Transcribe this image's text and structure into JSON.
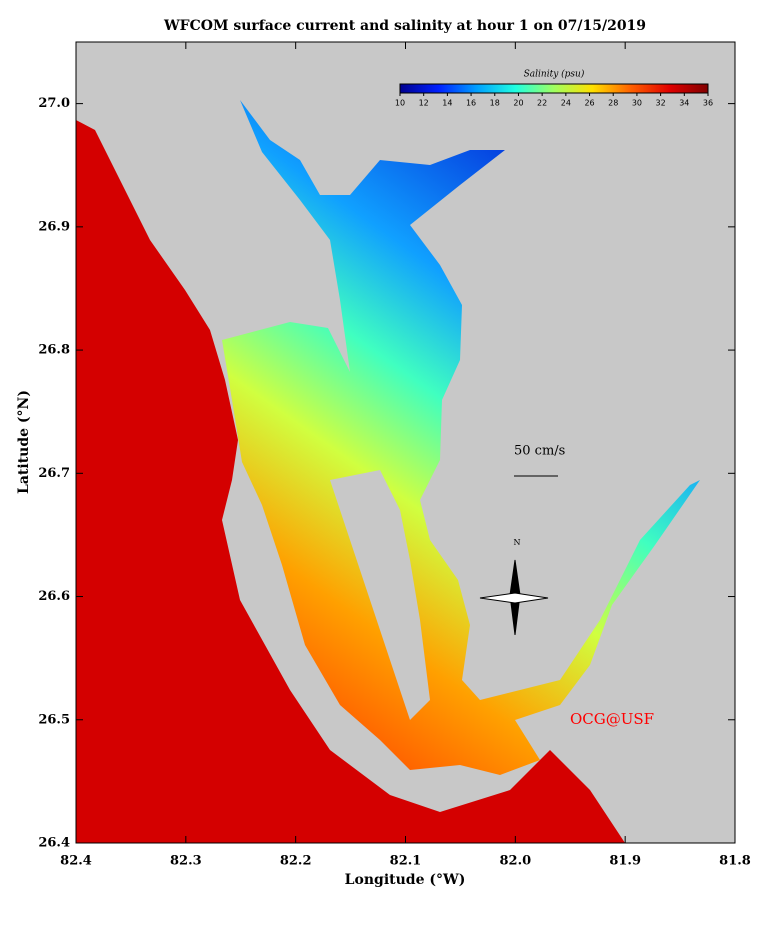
{
  "chart_data": {
    "type": "map",
    "title": "WFCOM surface current and salinity at hour 1 on 07/15/2019",
    "xlabel": "Longitude (°W)",
    "ylabel": "Latitude (°N)",
    "xlim": [
      82.4,
      81.8
    ],
    "ylim": [
      26.4,
      27.05
    ],
    "xticks": [
      82.4,
      82.3,
      82.2,
      82.1,
      {
        "value": 82,
        "label": "82.0"
      },
      81.9,
      81.8
    ],
    "yticks": [
      26.4,
      26.5,
      26.6,
      26.7,
      26.8,
      26.9,
      {
        "value": 27,
        "label": "27.0"
      }
    ],
    "colorbar": {
      "label": "Salinity (psu)",
      "lim": [
        10,
        36
      ],
      "ticks": [
        10,
        12,
        14,
        16,
        18,
        20,
        22,
        24,
        26,
        28,
        30,
        32,
        34,
        36
      ],
      "colors": [
        "#00008f",
        "#0020ff",
        "#00a0ff",
        "#20ffe0",
        "#a0ff60",
        "#ffe000",
        "#ff6000",
        "#e00000",
        "#800000"
      ]
    },
    "scale_label": "50 cm/s",
    "north_label": "N",
    "credit": "OCG@USF"
  }
}
